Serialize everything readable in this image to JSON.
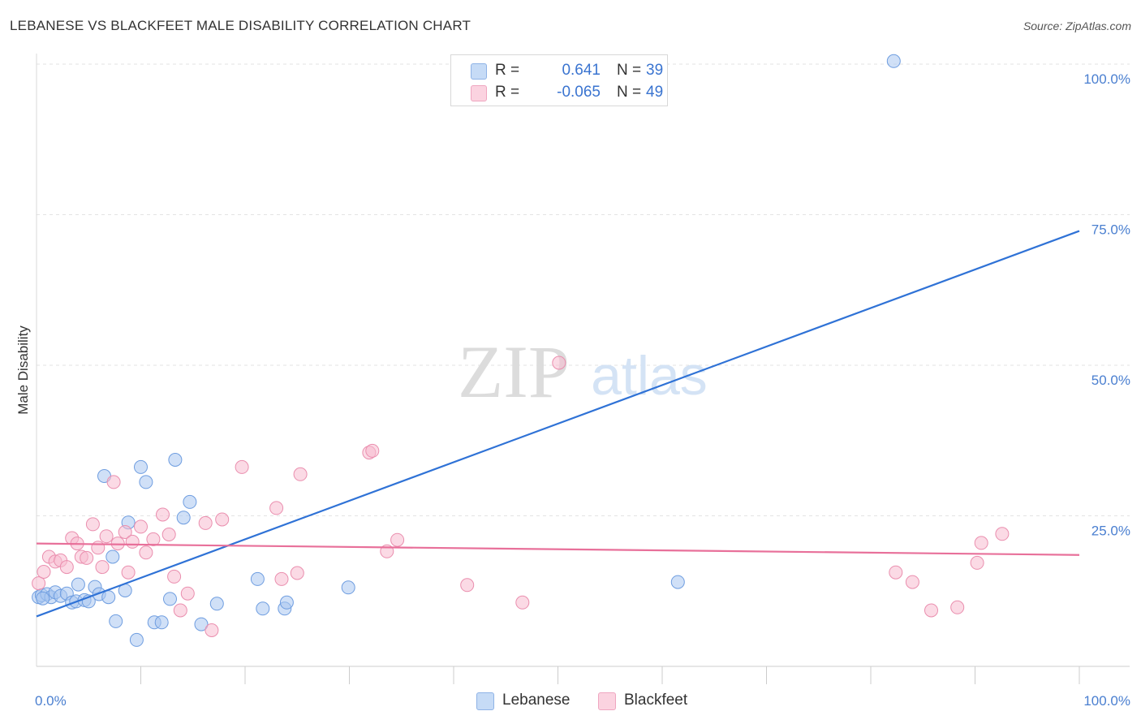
{
  "title": "LEBANESE VS BLACKFEET MALE DISABILITY CORRELATION CHART",
  "source": "Source: ZipAtlas.com",
  "watermark": {
    "left": "ZIP",
    "right": "atlas"
  },
  "legend_top": {
    "rows": [
      {
        "r_label": "R =",
        "r_value": "0.641",
        "n_label": "N =",
        "n_value": "39",
        "color": "#a9c7f0"
      },
      {
        "r_label": "R =",
        "r_value": "-0.065",
        "n_label": "N =",
        "n_value": "49",
        "color": "#f7bcd0"
      }
    ]
  },
  "legend_bottom": [
    {
      "label": "Lebanese",
      "color": "#a9c7f0"
    },
    {
      "label": "Blackfeet",
      "color": "#f7bcd0"
    }
  ],
  "chart_data": {
    "type": "scatter",
    "title": "LEBANESE VS BLACKFEET MALE DISABILITY CORRELATION CHART",
    "xlabel": "",
    "ylabel": "Male Disability",
    "xlim": [
      0,
      100
    ],
    "ylim": [
      0,
      100
    ],
    "x_tick_labels": [
      "0.0%",
      "100.0%"
    ],
    "y_tick_labels": [
      "25.0%",
      "50.0%",
      "75.0%",
      "100.0%"
    ],
    "y_ticks": [
      25,
      50,
      75,
      100
    ],
    "grid": true,
    "series": [
      {
        "name": "Lebanese",
        "color": "#a9c7f0",
        "stroke": "#6e9de0",
        "line_color": "#2f72d6",
        "trend": [
          [
            0,
            8.3
          ],
          [
            100,
            72.3
          ]
        ],
        "points": [
          [
            0.2,
            11.5
          ],
          [
            0.5,
            11.8
          ],
          [
            1.0,
            12.0
          ],
          [
            1.4,
            11.5
          ],
          [
            1.8,
            12.3
          ],
          [
            2.3,
            11.7
          ],
          [
            2.9,
            12.1
          ],
          [
            3.4,
            10.6
          ],
          [
            3.8,
            10.8
          ],
          [
            4.0,
            13.6
          ],
          [
            4.6,
            11.0
          ],
          [
            5.0,
            10.8
          ],
          [
            5.6,
            13.2
          ],
          [
            6.0,
            12.0
          ],
          [
            6.5,
            31.6
          ],
          [
            6.9,
            11.5
          ],
          [
            7.3,
            18.2
          ],
          [
            7.6,
            7.5
          ],
          [
            8.5,
            12.6
          ],
          [
            8.8,
            23.9
          ],
          [
            9.6,
            4.4
          ],
          [
            10.0,
            33.1
          ],
          [
            10.5,
            30.6
          ],
          [
            11.3,
            7.3
          ],
          [
            12.0,
            7.3
          ],
          [
            12.8,
            11.2
          ],
          [
            13.3,
            34.3
          ],
          [
            14.1,
            24.7
          ],
          [
            14.7,
            27.3
          ],
          [
            15.8,
            7.0
          ],
          [
            17.3,
            10.4
          ],
          [
            21.2,
            14.5
          ],
          [
            21.7,
            9.6
          ],
          [
            23.8,
            9.6
          ],
          [
            24.0,
            10.6
          ],
          [
            29.9,
            13.1
          ],
          [
            61.5,
            14.0
          ],
          [
            82.2,
            100.5
          ],
          [
            0.6,
            11.3
          ]
        ]
      },
      {
        "name": "Blackfeet",
        "color": "#f7bcd0",
        "stroke": "#ea8eae",
        "line_color": "#e8709a",
        "trend": [
          [
            0,
            20.4
          ],
          [
            100,
            18.5
          ]
        ],
        "points": [
          [
            0.2,
            13.8
          ],
          [
            0.7,
            15.7
          ],
          [
            1.2,
            18.2
          ],
          [
            1.8,
            17.4
          ],
          [
            2.3,
            17.6
          ],
          [
            2.9,
            16.5
          ],
          [
            3.4,
            21.3
          ],
          [
            3.9,
            20.4
          ],
          [
            4.3,
            18.2
          ],
          [
            4.8,
            18.0
          ],
          [
            5.4,
            23.6
          ],
          [
            5.9,
            19.7
          ],
          [
            6.3,
            16.5
          ],
          [
            6.7,
            21.6
          ],
          [
            7.4,
            30.6
          ],
          [
            7.8,
            20.4
          ],
          [
            8.5,
            22.3
          ],
          [
            8.8,
            15.6
          ],
          [
            9.2,
            20.7
          ],
          [
            10.0,
            23.2
          ],
          [
            10.5,
            18.9
          ],
          [
            11.2,
            21.1
          ],
          [
            12.1,
            25.2
          ],
          [
            12.7,
            21.9
          ],
          [
            13.2,
            14.9
          ],
          [
            13.8,
            9.3
          ],
          [
            14.5,
            12.1
          ],
          [
            16.2,
            23.8
          ],
          [
            16.8,
            6.0
          ],
          [
            17.8,
            24.4
          ],
          [
            19.7,
            33.1
          ],
          [
            23.0,
            26.3
          ],
          [
            23.5,
            14.5
          ],
          [
            25.0,
            15.5
          ],
          [
            25.3,
            31.9
          ],
          [
            31.9,
            35.5
          ],
          [
            32.2,
            35.8
          ],
          [
            33.6,
            19.1
          ],
          [
            34.6,
            21.0
          ],
          [
            41.3,
            13.5
          ],
          [
            46.6,
            10.6
          ],
          [
            50.1,
            50.4
          ],
          [
            82.4,
            15.6
          ],
          [
            84.0,
            14.0
          ],
          [
            85.8,
            9.3
          ],
          [
            88.3,
            9.8
          ],
          [
            90.2,
            17.2
          ],
          [
            90.6,
            20.5
          ],
          [
            92.6,
            22.0
          ]
        ]
      }
    ]
  }
}
